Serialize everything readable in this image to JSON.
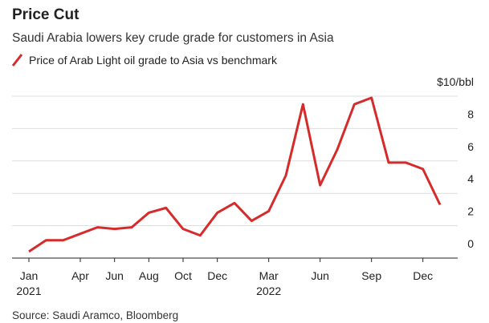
{
  "chart_data": {
    "type": "line",
    "title": "Price Cut",
    "subtitle": "Saudi Arabia lowers key crude grade for customers in Asia",
    "source": "Source: Saudi Aramco, Bloomberg",
    "categories": [
      "Jan 2021",
      null,
      null,
      "Apr",
      null,
      "Jun",
      null,
      "Aug",
      null,
      "Oct",
      null,
      "Dec",
      null,
      null,
      "Mar 2022",
      null,
      null,
      "Jun",
      null,
      null,
      "Sep",
      null,
      null,
      "Dec",
      null
    ],
    "series": [
      {
        "name": "Price of Arab Light oil grade to Asia vs benchmark",
        "color": "#d62b2b",
        "values": [
          0.4,
          1.1,
          1.1,
          1.5,
          1.9,
          1.8,
          1.9,
          2.8,
          3.1,
          1.8,
          1.4,
          2.8,
          3.4,
          2.3,
          2.9,
          5.1,
          9.5,
          4.5,
          6.7,
          9.5,
          9.9,
          5.9,
          5.9,
          5.5,
          3.3
        ]
      }
    ],
    "ylim": [
      0,
      10
    ],
    "yticks": [
      0,
      2,
      4,
      6,
      8,
      {
        "value": 10,
        "label": "$10/bbl"
      }
    ],
    "grid": true
  }
}
